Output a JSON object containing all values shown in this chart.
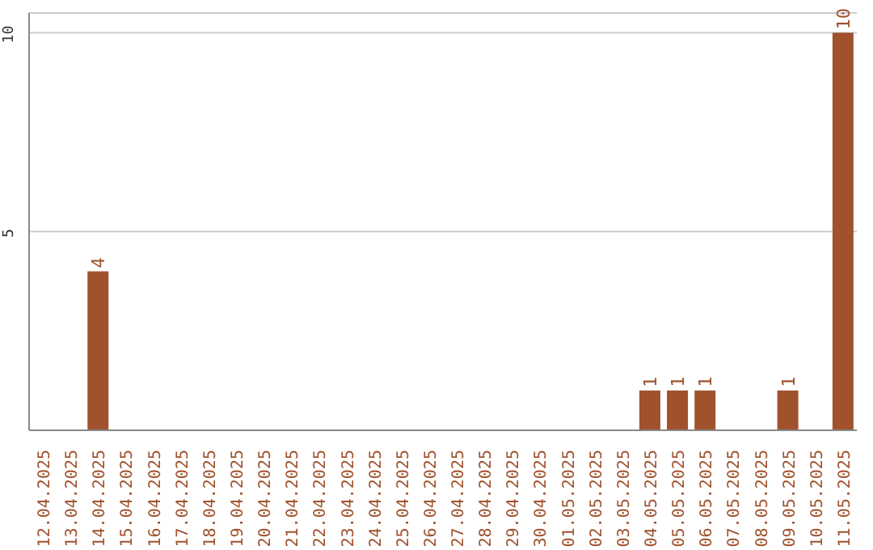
{
  "chart_data": {
    "type": "bar",
    "categories": [
      "12.04.2025",
      "13.04.2025",
      "14.04.2025",
      "15.04.2025",
      "16.04.2025",
      "17.04.2025",
      "18.04.2025",
      "19.04.2025",
      "20.04.2025",
      "21.04.2025",
      "22.04.2025",
      "23.04.2025",
      "24.04.2025",
      "25.04.2025",
      "26.04.2025",
      "27.04.2025",
      "28.04.2025",
      "29.04.2025",
      "30.04.2025",
      "01.05.2025",
      "02.05.2025",
      "03.05.2025",
      "04.05.2025",
      "05.05.2025",
      "06.05.2025",
      "07.05.2025",
      "08.05.2025",
      "09.05.2025",
      "10.05.2025",
      "11.05.2025"
    ],
    "values": [
      0,
      0,
      4,
      0,
      0,
      0,
      0,
      0,
      0,
      0,
      0,
      0,
      0,
      0,
      0,
      0,
      0,
      0,
      0,
      0,
      0,
      0,
      1,
      1,
      1,
      0,
      0,
      1,
      0,
      10
    ],
    "value_labels": [
      null,
      null,
      "4",
      null,
      null,
      null,
      null,
      null,
      null,
      null,
      null,
      null,
      null,
      null,
      null,
      null,
      null,
      null,
      null,
      null,
      null,
      null,
      "1",
      "1",
      "1",
      null,
      null,
      "1",
      null,
      "10"
    ],
    "color": "#a0522d",
    "ylim": [
      0,
      10.5
    ],
    "yticks": [
      5,
      10
    ],
    "grid": "y"
  }
}
